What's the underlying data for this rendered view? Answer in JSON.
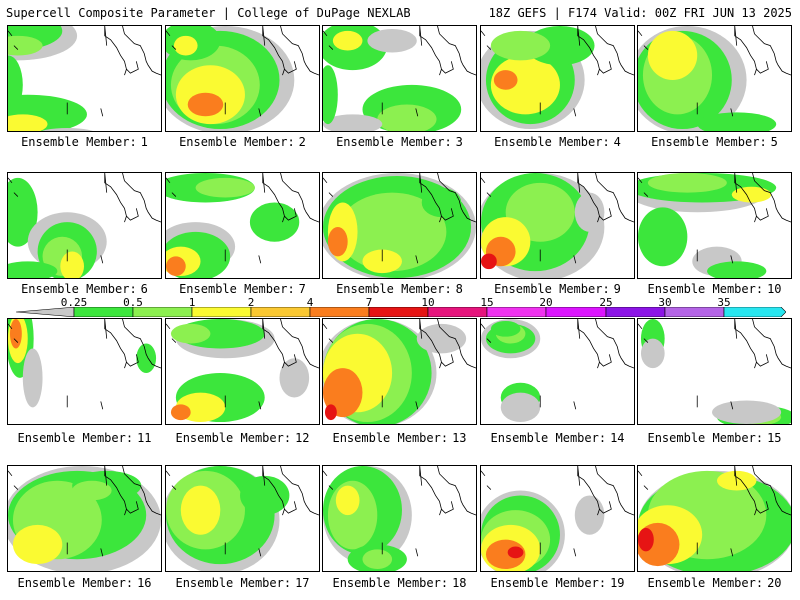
{
  "header": {
    "title_left": "Supercell Composite Parameter | College of DuPage NEXLAB",
    "title_right": "18Z GEFS | F174 Valid: 00Z FRI JUN 13 2025"
  },
  "member_label": "Ensemble Member:",
  "members": [
    1,
    2,
    3,
    4,
    5,
    6,
    7,
    8,
    9,
    10,
    11,
    12,
    13,
    14,
    15,
    16,
    17,
    18,
    19,
    20
  ],
  "colorbar": {
    "ticks": [
      "0.25",
      "0.5",
      "1",
      "2",
      "4",
      "7",
      "10",
      "15",
      "20",
      "25",
      "30",
      "35"
    ],
    "colors": [
      "#c8c8c8",
      "#3ce63c",
      "#8cf050",
      "#fafa32",
      "#fac832",
      "#fa7d1e",
      "#e61414",
      "#e6147d",
      "#f032f0",
      "#dc14ff",
      "#8c14e6",
      "#b464e6",
      "#28e6f0"
    ]
  },
  "map_colors": {
    "gray": "#c8c8c8",
    "green": "#3ce63c",
    "lightgreen": "#8cf050",
    "yellow": "#fafa32",
    "orange": "#fa7d1e",
    "red": "#e61414"
  },
  "panels": [
    {
      "member": 1,
      "blobs": [
        [
          "gray",
          10,
          10,
          60,
          25
        ],
        [
          "green",
          5,
          5,
          50,
          20
        ],
        [
          "lightgreen",
          10,
          20,
          25,
          10
        ],
        [
          "green",
          20,
          90,
          60,
          20
        ],
        [
          "yellow",
          15,
          100,
          25,
          10
        ],
        [
          "gray",
          60,
          110,
          30,
          6
        ],
        [
          "green",
          0,
          60,
          15,
          30
        ]
      ]
    },
    {
      "member": 2,
      "blobs": [
        [
          "gray",
          60,
          55,
          70,
          55
        ],
        [
          "green",
          55,
          55,
          60,
          50
        ],
        [
          "lightgreen",
          50,
          60,
          45,
          40
        ],
        [
          "yellow",
          45,
          70,
          35,
          30
        ],
        [
          "orange",
          40,
          80,
          18,
          12
        ],
        [
          "green",
          25,
          15,
          30,
          20
        ],
        [
          "yellow",
          20,
          20,
          12,
          10
        ]
      ]
    },
    {
      "member": 3,
      "blobs": [
        [
          "green",
          30,
          20,
          35,
          25
        ],
        [
          "yellow",
          25,
          15,
          15,
          10
        ],
        [
          "gray",
          70,
          15,
          25,
          12
        ],
        [
          "green",
          90,
          85,
          50,
          25
        ],
        [
          "lightgreen",
          85,
          95,
          30,
          15
        ],
        [
          "gray",
          30,
          100,
          30,
          10
        ],
        [
          "green",
          5,
          70,
          10,
          30
        ]
      ]
    },
    {
      "member": 4,
      "blobs": [
        [
          "gray",
          50,
          55,
          55,
          50
        ],
        [
          "green",
          50,
          55,
          45,
          45
        ],
        [
          "yellow",
          45,
          60,
          35,
          30
        ],
        [
          "orange",
          25,
          55,
          12,
          10
        ],
        [
          "green",
          80,
          20,
          35,
          20
        ],
        [
          "lightgreen",
          40,
          20,
          30,
          15
        ]
      ]
    },
    {
      "member": 5,
      "blobs": [
        [
          "gray",
          50,
          55,
          60,
          55
        ],
        [
          "green",
          45,
          55,
          50,
          50
        ],
        [
          "lightgreen",
          40,
          50,
          35,
          40
        ],
        [
          "yellow",
          35,
          30,
          25,
          25
        ],
        [
          "green",
          100,
          100,
          40,
          12
        ]
      ]
    },
    {
      "member": 6,
      "blobs": [
        [
          "green",
          10,
          40,
          20,
          35
        ],
        [
          "gray",
          60,
          70,
          40,
          30
        ],
        [
          "green",
          60,
          80,
          30,
          30
        ],
        [
          "lightgreen",
          55,
          85,
          20,
          20
        ],
        [
          "yellow",
          65,
          95,
          12,
          15
        ],
        [
          "green",
          20,
          100,
          30,
          10
        ]
      ]
    },
    {
      "member": 7,
      "blobs": [
        [
          "green",
          40,
          15,
          50,
          15
        ],
        [
          "lightgreen",
          60,
          15,
          30,
          10
        ],
        [
          "gray",
          30,
          75,
          40,
          25
        ],
        [
          "green",
          30,
          85,
          35,
          25
        ],
        [
          "yellow",
          15,
          90,
          20,
          15
        ],
        [
          "orange",
          10,
          95,
          10,
          10
        ],
        [
          "green",
          110,
          50,
          25,
          20
        ]
      ]
    },
    {
      "member": 8,
      "blobs": [
        [
          "gray",
          75,
          55,
          80,
          55
        ],
        [
          "green",
          75,
          55,
          75,
          52
        ],
        [
          "lightgreen",
          70,
          60,
          55,
          40
        ],
        [
          "yellow",
          20,
          60,
          15,
          30
        ],
        [
          "orange",
          15,
          70,
          10,
          15
        ],
        [
          "yellow",
          60,
          90,
          20,
          12
        ],
        [
          "green",
          120,
          30,
          20,
          15
        ]
      ]
    },
    {
      "member": 9,
      "blobs": [
        [
          "gray",
          60,
          55,
          65,
          55
        ],
        [
          "green",
          55,
          50,
          55,
          50
        ],
        [
          "lightgreen",
          60,
          40,
          35,
          30
        ],
        [
          "yellow",
          25,
          70,
          25,
          25
        ],
        [
          "orange",
          20,
          80,
          15,
          15
        ],
        [
          "red",
          8,
          90,
          8,
          8
        ],
        [
          "gray",
          110,
          40,
          15,
          20
        ]
      ]
    },
    {
      "member": 10,
      "blobs": [
        [
          "gray",
          60,
          20,
          70,
          20
        ],
        [
          "green",
          65,
          15,
          75,
          15
        ],
        [
          "lightgreen",
          50,
          10,
          40,
          10
        ],
        [
          "yellow",
          115,
          22,
          20,
          8
        ],
        [
          "green",
          25,
          65,
          25,
          30
        ],
        [
          "gray",
          80,
          90,
          25,
          15
        ],
        [
          "green",
          100,
          100,
          30,
          10
        ]
      ]
    },
    {
      "member": 11,
      "blobs": [
        [
          "green",
          12,
          20,
          14,
          40
        ],
        [
          "yellow",
          10,
          20,
          10,
          25
        ],
        [
          "orange",
          8,
          15,
          6,
          15
        ],
        [
          "gray",
          25,
          60,
          10,
          30
        ],
        [
          "green",
          140,
          40,
          10,
          15
        ]
      ]
    },
    {
      "member": 12,
      "blobs": [
        [
          "gray",
          60,
          20,
          50,
          20
        ],
        [
          "green",
          55,
          15,
          45,
          15
        ],
        [
          "lightgreen",
          25,
          15,
          20,
          10
        ],
        [
          "green",
          55,
          80,
          45,
          25
        ],
        [
          "yellow",
          35,
          90,
          25,
          15
        ],
        [
          "orange",
          15,
          95,
          10,
          8
        ],
        [
          "gray",
          130,
          60,
          15,
          20
        ]
      ]
    },
    {
      "member": 13,
      "blobs": [
        [
          "gray",
          55,
          55,
          60,
          55
        ],
        [
          "green",
          55,
          55,
          55,
          55
        ],
        [
          "lightgreen",
          45,
          55,
          45,
          50
        ],
        [
          "yellow",
          35,
          55,
          35,
          40
        ],
        [
          "orange",
          20,
          75,
          20,
          25
        ],
        [
          "red",
          8,
          95,
          6,
          8
        ],
        [
          "gray",
          120,
          20,
          25,
          15
        ]
      ]
    },
    {
      "member": 14,
      "blobs": [
        [
          "gray",
          30,
          20,
          30,
          20
        ],
        [
          "green",
          30,
          20,
          25,
          15
        ],
        [
          "lightgreen",
          30,
          15,
          15,
          10
        ],
        [
          "green",
          40,
          80,
          20,
          15
        ],
        [
          "gray",
          40,
          90,
          20,
          15
        ],
        [
          "green",
          25,
          10,
          15,
          8
        ]
      ]
    },
    {
      "member": 15,
      "blobs": [
        [
          "green",
          15,
          20,
          12,
          20
        ],
        [
          "gray",
          15,
          35,
          12,
          15
        ],
        [
          "green",
          120,
          100,
          40,
          12
        ],
        [
          "lightgreen",
          125,
          100,
          20,
          8
        ],
        [
          "gray",
          110,
          95,
          35,
          12
        ]
      ]
    },
    {
      "member": 16,
      "blobs": [
        [
          "gray",
          75,
          55,
          80,
          55
        ],
        [
          "green",
          70,
          50,
          70,
          45
        ],
        [
          "lightgreen",
          50,
          55,
          45,
          40
        ],
        [
          "yellow",
          30,
          80,
          25,
          20
        ],
        [
          "green",
          100,
          20,
          35,
          15
        ],
        [
          "lightgreen",
          85,
          25,
          20,
          10
        ]
      ]
    },
    {
      "member": 17,
      "blobs": [
        [
          "gray",
          55,
          55,
          60,
          55
        ],
        [
          "green",
          55,
          50,
          55,
          50
        ],
        [
          "lightgreen",
          40,
          45,
          40,
          40
        ],
        [
          "yellow",
          35,
          45,
          20,
          25
        ],
        [
          "green",
          100,
          30,
          25,
          20
        ]
      ]
    },
    {
      "member": 18,
      "blobs": [
        [
          "gray",
          45,
          50,
          45,
          50
        ],
        [
          "green",
          40,
          45,
          40,
          45
        ],
        [
          "lightgreen",
          30,
          50,
          25,
          35
        ],
        [
          "yellow",
          25,
          35,
          12,
          15
        ],
        [
          "green",
          55,
          95,
          30,
          15
        ],
        [
          "lightgreen",
          55,
          95,
          15,
          10
        ]
      ]
    },
    {
      "member": 19,
      "blobs": [
        [
          "gray",
          40,
          70,
          45,
          45
        ],
        [
          "green",
          40,
          70,
          40,
          40
        ],
        [
          "lightgreen",
          35,
          75,
          35,
          30
        ],
        [
          "yellow",
          30,
          85,
          30,
          25
        ],
        [
          "orange",
          25,
          90,
          20,
          15
        ],
        [
          "red",
          35,
          88,
          8,
          6
        ],
        [
          "gray",
          110,
          50,
          15,
          20
        ]
      ]
    },
    {
      "member": 20,
      "blobs": [
        [
          "gray",
          80,
          60,
          80,
          55
        ],
        [
          "green",
          80,
          60,
          80,
          52
        ],
        [
          "lightgreen",
          70,
          50,
          60,
          45
        ],
        [
          "yellow",
          30,
          70,
          35,
          30
        ],
        [
          "orange",
          20,
          80,
          22,
          22
        ],
        [
          "red",
          8,
          75,
          8,
          12
        ],
        [
          "yellow",
          100,
          15,
          20,
          10
        ]
      ]
    }
  ]
}
